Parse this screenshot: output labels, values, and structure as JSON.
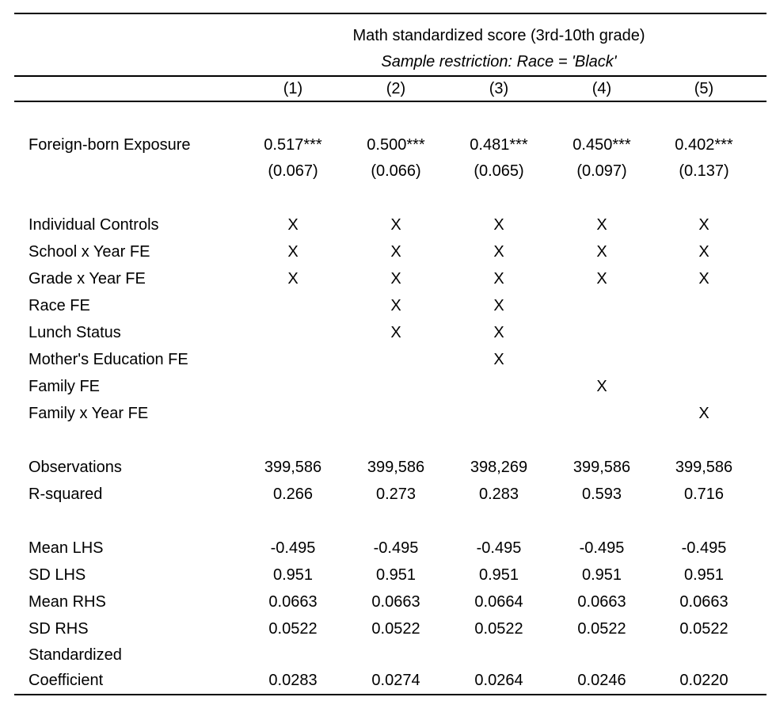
{
  "header": {
    "title": "Math standardized score (3rd-10th grade)",
    "subtitle": "Sample restriction: Race = 'Black'",
    "columns": [
      "(1)",
      "(2)",
      "(3)",
      "(4)",
      "(5)"
    ]
  },
  "rows": [
    {
      "label": "Foreign-born Exposure",
      "values": [
        "0.517***",
        "0.500***",
        "0.481***",
        "0.450***",
        "0.402***"
      ]
    },
    {
      "label": "",
      "values": [
        "(0.067)",
        "(0.066)",
        "(0.065)",
        "(0.097)",
        "(0.137)"
      ]
    },
    {
      "label": "Individual Controls",
      "values": [
        "X",
        "X",
        "X",
        "X",
        "X"
      ]
    },
    {
      "label": "School x Year FE",
      "values": [
        "X",
        "X",
        "X",
        "X",
        "X"
      ]
    },
    {
      "label": "Grade x Year FE",
      "values": [
        "X",
        "X",
        "X",
        "X",
        "X"
      ]
    },
    {
      "label": "Race FE",
      "values": [
        "",
        "X",
        "X",
        "",
        ""
      ]
    },
    {
      "label": "Lunch Status",
      "values": [
        "",
        "X",
        "X",
        "",
        ""
      ]
    },
    {
      "label": "Mother's Education FE",
      "values": [
        "",
        "",
        "X",
        "",
        ""
      ]
    },
    {
      "label": "Family FE",
      "values": [
        "",
        "",
        "",
        "X",
        ""
      ]
    },
    {
      "label": "Family x Year FE",
      "values": [
        "",
        "",
        "",
        "",
        "X"
      ]
    },
    {
      "label": "Observations",
      "values": [
        "399,586",
        "399,586",
        "398,269",
        "399,586",
        "399,586"
      ]
    },
    {
      "label": "R-squared",
      "values": [
        "0.266",
        "0.273",
        "0.283",
        "0.593",
        "0.716"
      ]
    },
    {
      "label": "Mean LHS",
      "values": [
        "-0.495",
        "-0.495",
        "-0.495",
        "-0.495",
        "-0.495"
      ]
    },
    {
      "label": "SD LHS",
      "values": [
        "0.951",
        "0.951",
        "0.951",
        "0.951",
        "0.951"
      ]
    },
    {
      "label": "Mean RHS",
      "values": [
        "0.0663",
        "0.0663",
        "0.0664",
        "0.0663",
        "0.0663"
      ]
    },
    {
      "label": "SD RHS",
      "values": [
        "0.0522",
        "0.0522",
        "0.0522",
        "0.0522",
        "0.0522"
      ]
    },
    {
      "label": "Standardized",
      "values": [
        "",
        "",
        "",
        "",
        ""
      ]
    },
    {
      "label": "Coefficient",
      "values": [
        "0.0283",
        "0.0274",
        "0.0264",
        "0.0246",
        "0.0220"
      ]
    }
  ]
}
